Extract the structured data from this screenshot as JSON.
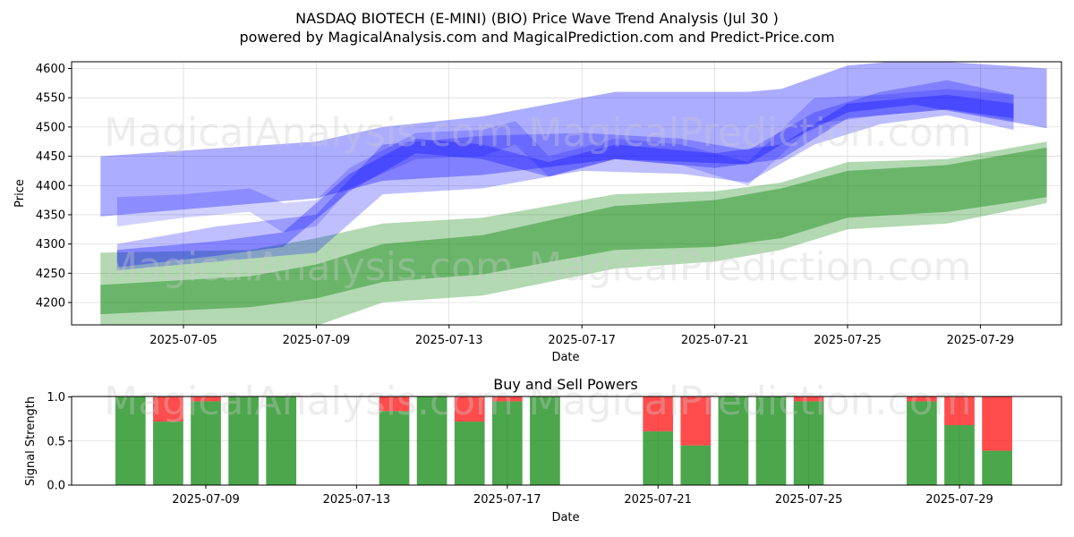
{
  "header": {
    "title_line1": "NASDAQ BIOTECH (E-MINI) (BIO) Price Wave Trend Analysis (Jul 30 )",
    "title_line2": "powered by MagicalAnalysis.com and MagicalPrediction.com and Predict-Price.com"
  },
  "watermarks": {
    "left": "MagicalAnalysis.com",
    "right": "MagicalPrediction.com"
  },
  "colors": {
    "blue_band": "#0000ff",
    "green_band": "#008000",
    "buy": "#008000",
    "sell": "#ff0000",
    "grid": "#b0b0b0"
  },
  "chart_data": [
    {
      "type": "area",
      "title": "",
      "xlabel": "Date",
      "ylabel": "Price",
      "ylim": [
        4160,
        4610
      ],
      "xlim": [
        "2025-07-02",
        "2025-07-31"
      ],
      "y_ticks": [
        4200,
        4250,
        4300,
        4350,
        4400,
        4450,
        4500,
        4550,
        4600
      ],
      "x_ticks": [
        "2025-07-05",
        "2025-07-09",
        "2025-07-13",
        "2025-07-17",
        "2025-07-21",
        "2025-07-25",
        "2025-07-29"
      ],
      "grid": true,
      "blue_bands": [
        {
          "x": [
            "2025-07-02.5",
            "2025-07-09",
            "2025-07-11",
            "2025-07-14",
            "2025-07-18",
            "2025-07-22",
            "2025-07-23",
            "2025-07-25",
            "2025-07-27",
            "2025-07-31"
          ],
          "upper": [
            4450,
            4475,
            4500,
            4518,
            4560,
            4560,
            4565,
            4605,
            4615,
            4600
          ],
          "lower": [
            4347,
            4378,
            4408,
            4418,
            4445,
            4436,
            4470,
            4525,
            4538,
            4498
          ]
        },
        {
          "x": [
            "2025-07-03",
            "2025-07-06",
            "2025-07-09",
            "2025-07-11",
            "2025-07-14",
            "2025-07-17",
            "2025-07-20",
            "2025-07-22",
            "2025-07-24",
            "2025-07-26",
            "2025-07-28",
            "2025-07-30"
          ],
          "upper": [
            4300,
            4330,
            4350,
            4470,
            4485,
            4490,
            4480,
            4460,
            4525,
            4560,
            4580,
            4555
          ],
          "lower": [
            4255,
            4270,
            4285,
            4385,
            4395,
            4425,
            4420,
            4405,
            4470,
            4505,
            4520,
            4495
          ]
        },
        {
          "x": [
            "2025-07-03",
            "2025-07-05",
            "2025-07-07",
            "2025-07-08",
            "2025-07-09",
            "2025-07-10",
            "2025-07-12",
            "2025-07-14",
            "2025-07-15",
            "2025-07-16",
            "2025-07-18",
            "2025-07-20",
            "2025-07-22",
            "2025-07-24",
            "2025-07-26",
            "2025-07-28",
            "2025-07-30"
          ],
          "upper": [
            4380,
            4385,
            4395,
            4370,
            4375,
            4430,
            4490,
            4495,
            4510,
            4450,
            4480,
            4470,
            4440,
            4550,
            4555,
            4565,
            4555
          ],
          "lower": [
            4330,
            4345,
            4355,
            4320,
            4330,
            4395,
            4445,
            4450,
            4470,
            4415,
            4445,
            4435,
            4400,
            4505,
            4520,
            4530,
            4510
          ]
        },
        {
          "x": [
            "2025-07-03",
            "2025-07-06",
            "2025-07-08",
            "2025-07-10",
            "2025-07-12",
            "2025-07-14",
            "2025-07-16",
            "2025-07-18",
            "2025-07-21",
            "2025-07-23",
            "2025-07-25",
            "2025-07-28",
            "2025-07-30"
          ],
          "upper": [
            4290,
            4305,
            4320,
            4420,
            4480,
            4470,
            4440,
            4470,
            4455,
            4470,
            4540,
            4555,
            4540
          ],
          "lower": [
            4260,
            4280,
            4295,
            4390,
            4455,
            4445,
            4415,
            4445,
            4430,
            4445,
            4515,
            4530,
            4515
          ]
        }
      ],
      "green_bands": [
        {
          "x": [
            "2025-07-02.5",
            "2025-07-07",
            "2025-07-09",
            "2025-07-11",
            "2025-07-14",
            "2025-07-18",
            "2025-07-21",
            "2025-07-23",
            "2025-07-25",
            "2025-07-28",
            "2025-07-31"
          ],
          "upper": [
            4285,
            4290,
            4310,
            4335,
            4345,
            4385,
            4390,
            4405,
            4440,
            4445,
            4475
          ],
          "lower": [
            4160,
            4160,
            4160,
            4200,
            4212,
            4258,
            4270,
            4290,
            4325,
            4335,
            4370
          ]
        },
        {
          "x": [
            "2025-07-02.5",
            "2025-07-07",
            "2025-07-09",
            "2025-07-11",
            "2025-07-14",
            "2025-07-18",
            "2025-07-21",
            "2025-07-23",
            "2025-07-25",
            "2025-07-28",
            "2025-07-31"
          ],
          "upper": [
            4230,
            4245,
            4265,
            4300,
            4315,
            4365,
            4375,
            4395,
            4425,
            4435,
            4465
          ],
          "lower": [
            4180,
            4192,
            4207,
            4235,
            4248,
            4290,
            4295,
            4310,
            4345,
            4355,
            4380
          ]
        }
      ]
    },
    {
      "type": "bar",
      "title": "Buy and Sell Powers",
      "xlabel": "Date",
      "ylabel": "Signal Strength",
      "ylim": [
        0,
        1
      ],
      "y_ticks": [
        "0.0",
        "0.5",
        "1.0"
      ],
      "x_ticks": [
        "2025-07-09",
        "2025-07-13",
        "2025-07-17",
        "2025-07-21",
        "2025-07-25",
        "2025-07-29"
      ],
      "grid": true,
      "bars": [
        {
          "date": "2025-07-07",
          "buy": 1.0
        },
        {
          "date": "2025-07-08",
          "buy": 0.72
        },
        {
          "date": "2025-07-09",
          "buy": 0.95
        },
        {
          "date": "2025-07-10",
          "buy": 1.0
        },
        {
          "date": "2025-07-11",
          "buy": 1.0
        },
        {
          "date": "2025-07-14",
          "buy": 0.84
        },
        {
          "date": "2025-07-15",
          "buy": 1.0
        },
        {
          "date": "2025-07-16",
          "buy": 0.72
        },
        {
          "date": "2025-07-17",
          "buy": 0.95
        },
        {
          "date": "2025-07-18",
          "buy": 1.0
        },
        {
          "date": "2025-07-21",
          "buy": 0.61
        },
        {
          "date": "2025-07-22",
          "buy": 0.45
        },
        {
          "date": "2025-07-23",
          "buy": 1.0
        },
        {
          "date": "2025-07-24",
          "buy": 1.0
        },
        {
          "date": "2025-07-25",
          "buy": 0.95
        },
        {
          "date": "2025-07-28",
          "buy": 0.95
        },
        {
          "date": "2025-07-29",
          "buy": 0.68
        },
        {
          "date": "2025-07-30",
          "buy": 0.39
        }
      ]
    }
  ]
}
